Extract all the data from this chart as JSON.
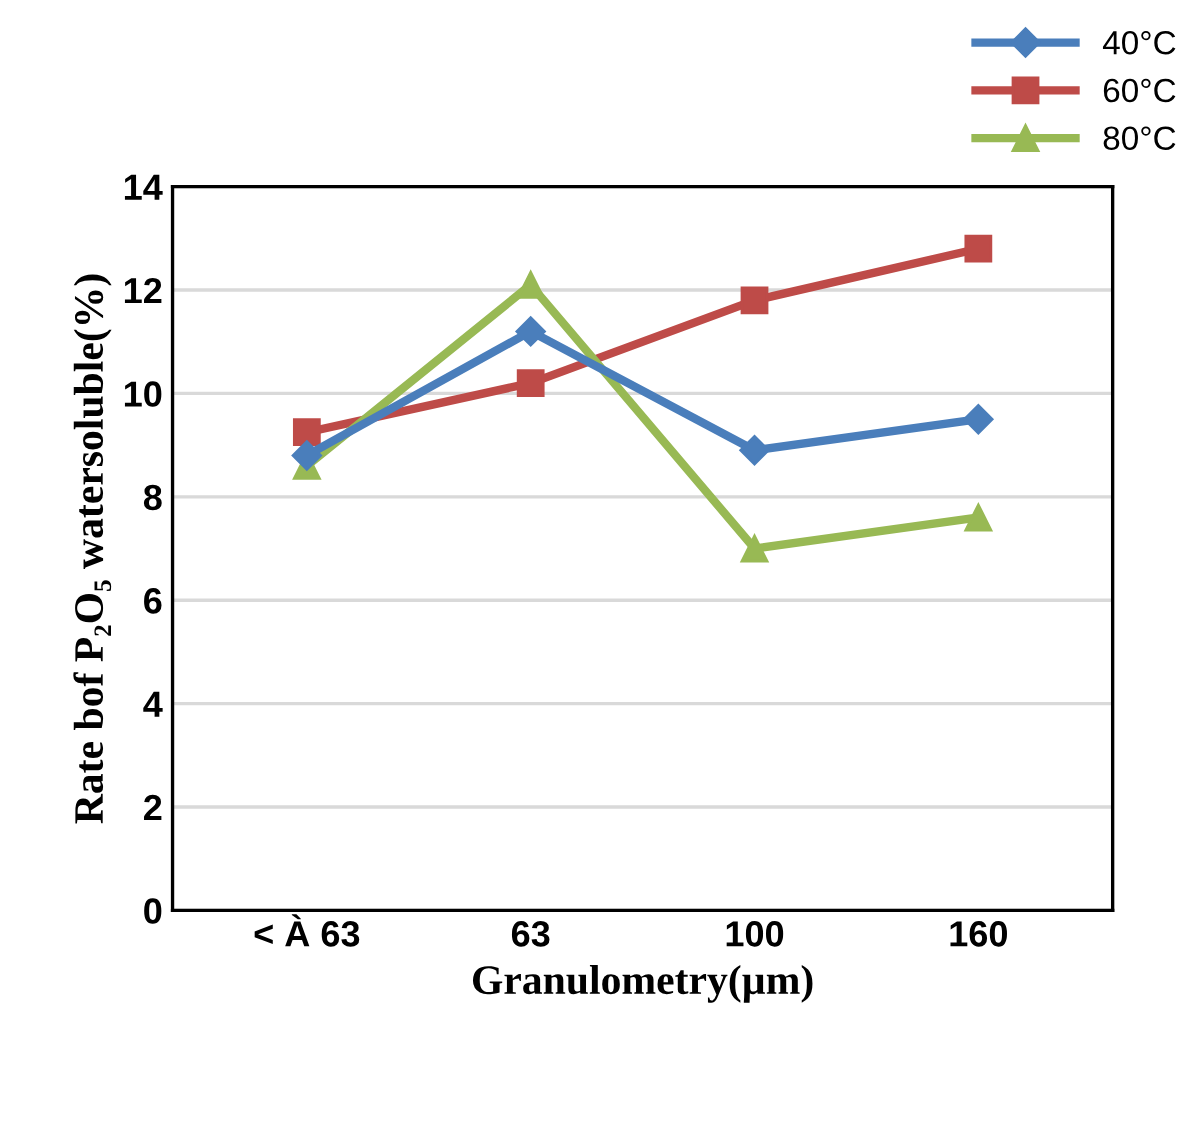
{
  "chart_data": {
    "type": "line",
    "xlabel": "Granulometry(µm)",
    "ylabel": "Rate bof P₂O₅ watersoluble(%)",
    "categories": [
      "< À 63",
      "63",
      "100",
      "160"
    ],
    "series": [
      {
        "name": "40°C",
        "color": "#4a7ebb",
        "marker": "diamond",
        "values": [
          8.8,
          11.2,
          8.9,
          9.5
        ]
      },
      {
        "name": "60°C",
        "color": "#be4b48",
        "marker": "square",
        "values": [
          9.25,
          10.2,
          11.8,
          12.8
        ]
      },
      {
        "name": "80°C",
        "color": "#98b954",
        "marker": "triangle",
        "values": [
          8.6,
          12.1,
          7.0,
          7.6
        ]
      }
    ],
    "ylim": [
      0,
      14
    ],
    "yticks": [
      0,
      2,
      4,
      6,
      8,
      10,
      12,
      14
    ],
    "grid": "y",
    "legend": "top right",
    "line_style": "solid"
  }
}
